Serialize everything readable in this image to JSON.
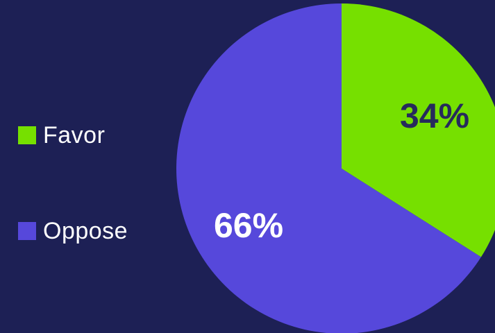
{
  "chart_data": {
    "type": "pie",
    "slices": [
      {
        "label": "Favor",
        "value": 34,
        "display": "34%",
        "color": "#76e000",
        "label_color": "#262a5c"
      },
      {
        "label": "Oppose",
        "value": 66,
        "display": "66%",
        "color": "#5648db",
        "label_color": "#ffffff"
      }
    ],
    "legend": {
      "placement": "left",
      "items": [
        {
          "label": "Favor",
          "color": "#76e000"
        },
        {
          "label": "Oppose",
          "color": "#5648db"
        }
      ]
    },
    "background": "#1d2055"
  }
}
